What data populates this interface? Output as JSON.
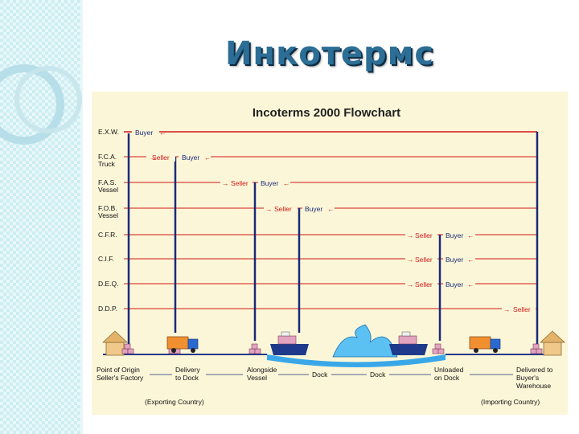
{
  "slide": {
    "title": "Инкотермс"
  },
  "flowchart": {
    "title": "Incoterms 2000 Flowchart",
    "terms": [
      {
        "label": "E.X.W."
      },
      {
        "label": "F.C.A.",
        "sub": "Truck",
        "seller": "Seller",
        "buyer": "Buyer"
      },
      {
        "label": "F.A.S.",
        "sub": "Vessel",
        "seller": "Seller",
        "buyer": "Buyer"
      },
      {
        "label": "F.O.B.",
        "sub": "Vessel",
        "seller": "Seller",
        "buyer": "Buyer"
      },
      {
        "label": "C.F.R.",
        "seller": "Seller",
        "buyer": "Buyer"
      },
      {
        "label": "C.I.F.",
        "seller": "Seller",
        "buyer": "Buyer"
      },
      {
        "label": "D.E.Q.",
        "seller": "Seller",
        "buyer": "Buyer"
      },
      {
        "label": "D.D.P.",
        "seller": "Seller"
      }
    ],
    "exw_buyer": "Buyer",
    "stations": [
      {
        "line1": "Point of Origin",
        "line2": "Seller's Factory"
      },
      {
        "line1": "Delivery",
        "line2": "to Dock"
      },
      {
        "line1": "Alongside",
        "line2": "Vessel"
      },
      {
        "line1": "Dock",
        "line2": ""
      },
      {
        "line1": "Dock",
        "line2": ""
      },
      {
        "line1": "Unloaded",
        "line2": "on Dock"
      },
      {
        "line1": "Delivered to",
        "line2": "Buyer's",
        "line3": "Warehouse"
      }
    ],
    "exporting": "(Exporting Country)",
    "importing": "(Importing Country)",
    "colors": {
      "arrow": "#d01818",
      "vertical": "#1a2a78",
      "label": "#1a2a78",
      "base": "#1f3a8a",
      "water": "#3aa8e8"
    }
  }
}
